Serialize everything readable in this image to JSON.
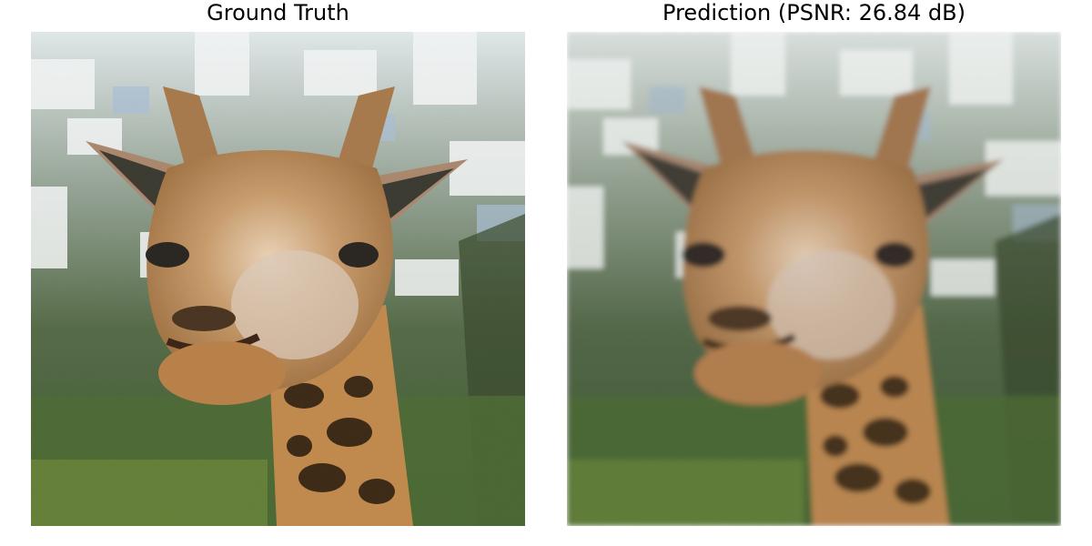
{
  "panels": [
    {
      "title": "Ground Truth",
      "image": "giraffe-original"
    },
    {
      "title": "Prediction (PSNR: 26.84 dB)",
      "image": "giraffe-reconstruction",
      "psnr_db": 26.84
    }
  ]
}
